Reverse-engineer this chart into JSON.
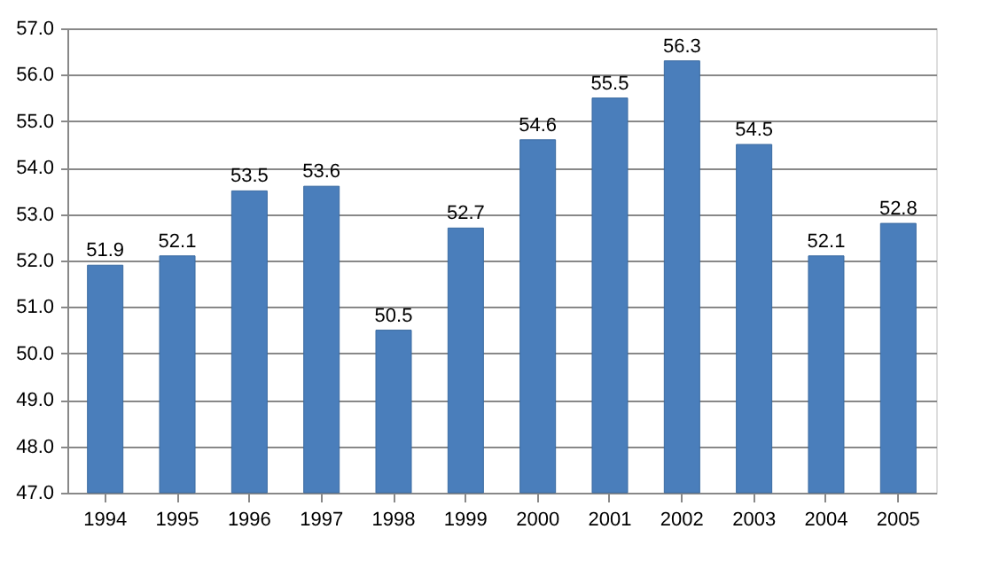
{
  "chart_data": {
    "type": "bar",
    "categories": [
      "1994",
      "1995",
      "1996",
      "1997",
      "1998",
      "1999",
      "2000",
      "2001",
      "2002",
      "2003",
      "2004",
      "2005"
    ],
    "values": [
      51.9,
      52.1,
      53.5,
      53.6,
      50.5,
      52.7,
      54.6,
      55.5,
      56.3,
      54.5,
      52.1,
      52.8
    ],
    "color": "#4a7ebb",
    "ylim": [
      47,
      57
    ],
    "yticks": [
      {
        "value": 47,
        "label": "47.0"
      },
      {
        "value": 48,
        "label": "48.0"
      },
      {
        "value": 49,
        "label": "49.0"
      },
      {
        "value": 50,
        "label": "50.0"
      },
      {
        "value": 51,
        "label": "51.0"
      },
      {
        "value": 52,
        "label": "52.0"
      },
      {
        "value": 53,
        "label": "53.0"
      },
      {
        "value": 54,
        "label": "54.0"
      },
      {
        "value": 55,
        "label": "55.0"
      },
      {
        "value": 56,
        "label": "56.0"
      },
      {
        "value": 57,
        "label": "57.0"
      }
    ],
    "grid": "y",
    "data_labels": true
  }
}
